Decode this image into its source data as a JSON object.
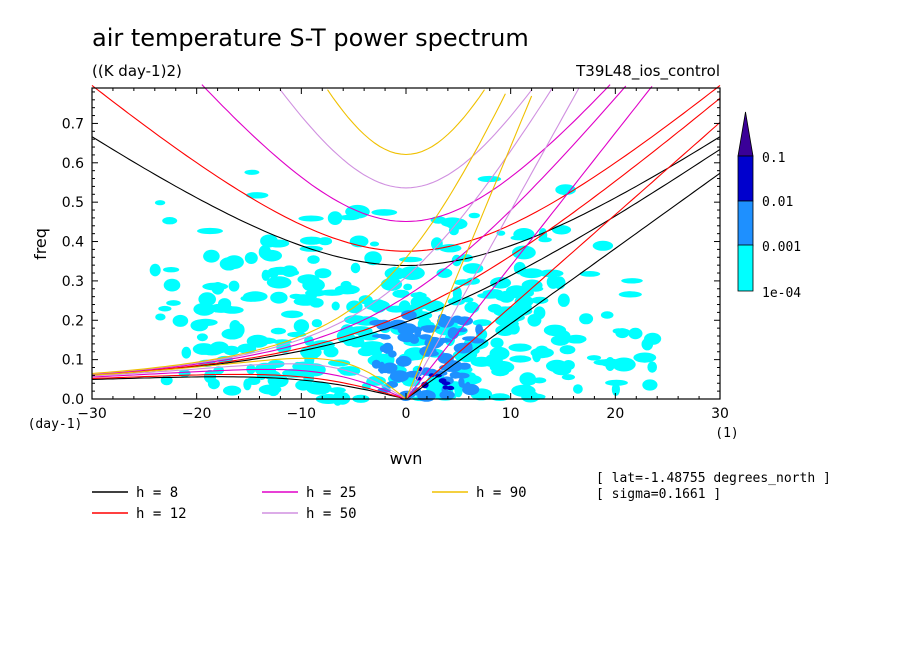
{
  "chart_data": {
    "type": "contour",
    "title": "air temperature S-T power spectrum",
    "units": "((K day-1)2)",
    "experiment": "T39L48_ios_control",
    "xlabel": "wvn",
    "ylabel": "freq",
    "xunit": "(1)",
    "yunit": "(day-1)",
    "xlim": [
      -30,
      30
    ],
    "ylim": [
      0,
      0.79
    ],
    "xticks": [
      "−30",
      "−20",
      "−10",
      "0",
      "10",
      "20",
      "30"
    ],
    "yticks": [
      "0.0",
      "0.1",
      "0.2",
      "0.3",
      "0.4",
      "0.5",
      "0.6",
      "0.7"
    ],
    "colorbar": {
      "levels": [
        "0.1",
        "0.01",
        "0.001",
        "1e-04"
      ],
      "colors": [
        "#00ffff",
        "#1e90ff",
        "#0000cd",
        "#3a0098"
      ]
    },
    "dispersion_curves": [
      {
        "label": "h =  8",
        "h": 8,
        "color": "#000000"
      },
      {
        "label": "h = 12",
        "h": 12,
        "color": "#ff0000"
      },
      {
        "label": "h = 25",
        "h": 25,
        "color": "#e000c8"
      },
      {
        "label": "h = 50",
        "h": 50,
        "color": "#d090e0"
      },
      {
        "label": "h = 90",
        "h": 90,
        "color": "#f0c000"
      }
    ],
    "annotations": [
      "[ lat=-1.48755 degrees_north ]",
      "[ sigma=0.1661 ]"
    ]
  }
}
